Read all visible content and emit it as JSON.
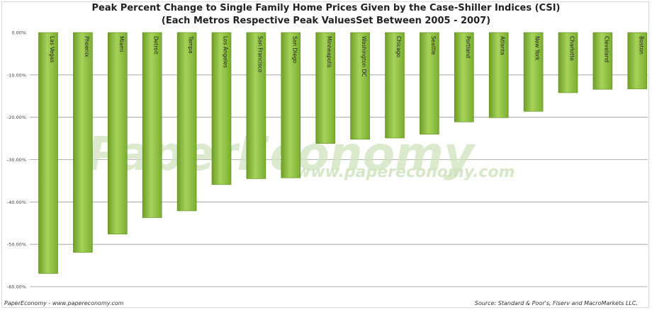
{
  "chart_data": {
    "type": "bar",
    "title": "Peak Percent Change to Single Family Home Prices Given by the Case-Shiller Indices (CSI)",
    "subtitle": "(Each Metros Respective Peak ValuesSet Between 2005 - 2007)",
    "categories": [
      "Las Vegas",
      "Phoenix",
      "Miami",
      "Detroit",
      "Tampa",
      "Los Angeles",
      "San Francisco",
      "San Diego",
      "Minneapolis",
      "Washington DC",
      "Chicago",
      "Seattle",
      "Portland",
      "Atlanta",
      "New York",
      "Charlotte",
      "Cleveland",
      "Boston"
    ],
    "values": [
      -56.9,
      -51.9,
      -47.6,
      -43.7,
      -42.1,
      -35.9,
      -34.5,
      -34.3,
      -26.2,
      -25.2,
      -24.9,
      -24.0,
      -21.1,
      -20.1,
      -18.6,
      -14.2,
      -13.4,
      -13.3
    ],
    "ylim": [
      -60,
      0
    ],
    "yticks": [
      "0.00%",
      "-10.00%",
      "-20.00%",
      "-30.00%",
      "-40.00%",
      "-50.00%",
      "-60.00%"
    ],
    "ytick_values": [
      0,
      -10,
      -20,
      -30,
      -40,
      -50,
      -60
    ],
    "grid": true,
    "legend": "none",
    "bar_color": "#8cbe3c"
  },
  "watermark": {
    "main": "PaperEconomy",
    "url": "www.papereconomy.com"
  },
  "footer": {
    "left": "PaperEconomy - www.papereconomy.com",
    "right": "Source: Standard & Poor's, Fiserv and MacroMarkets LLC."
  }
}
